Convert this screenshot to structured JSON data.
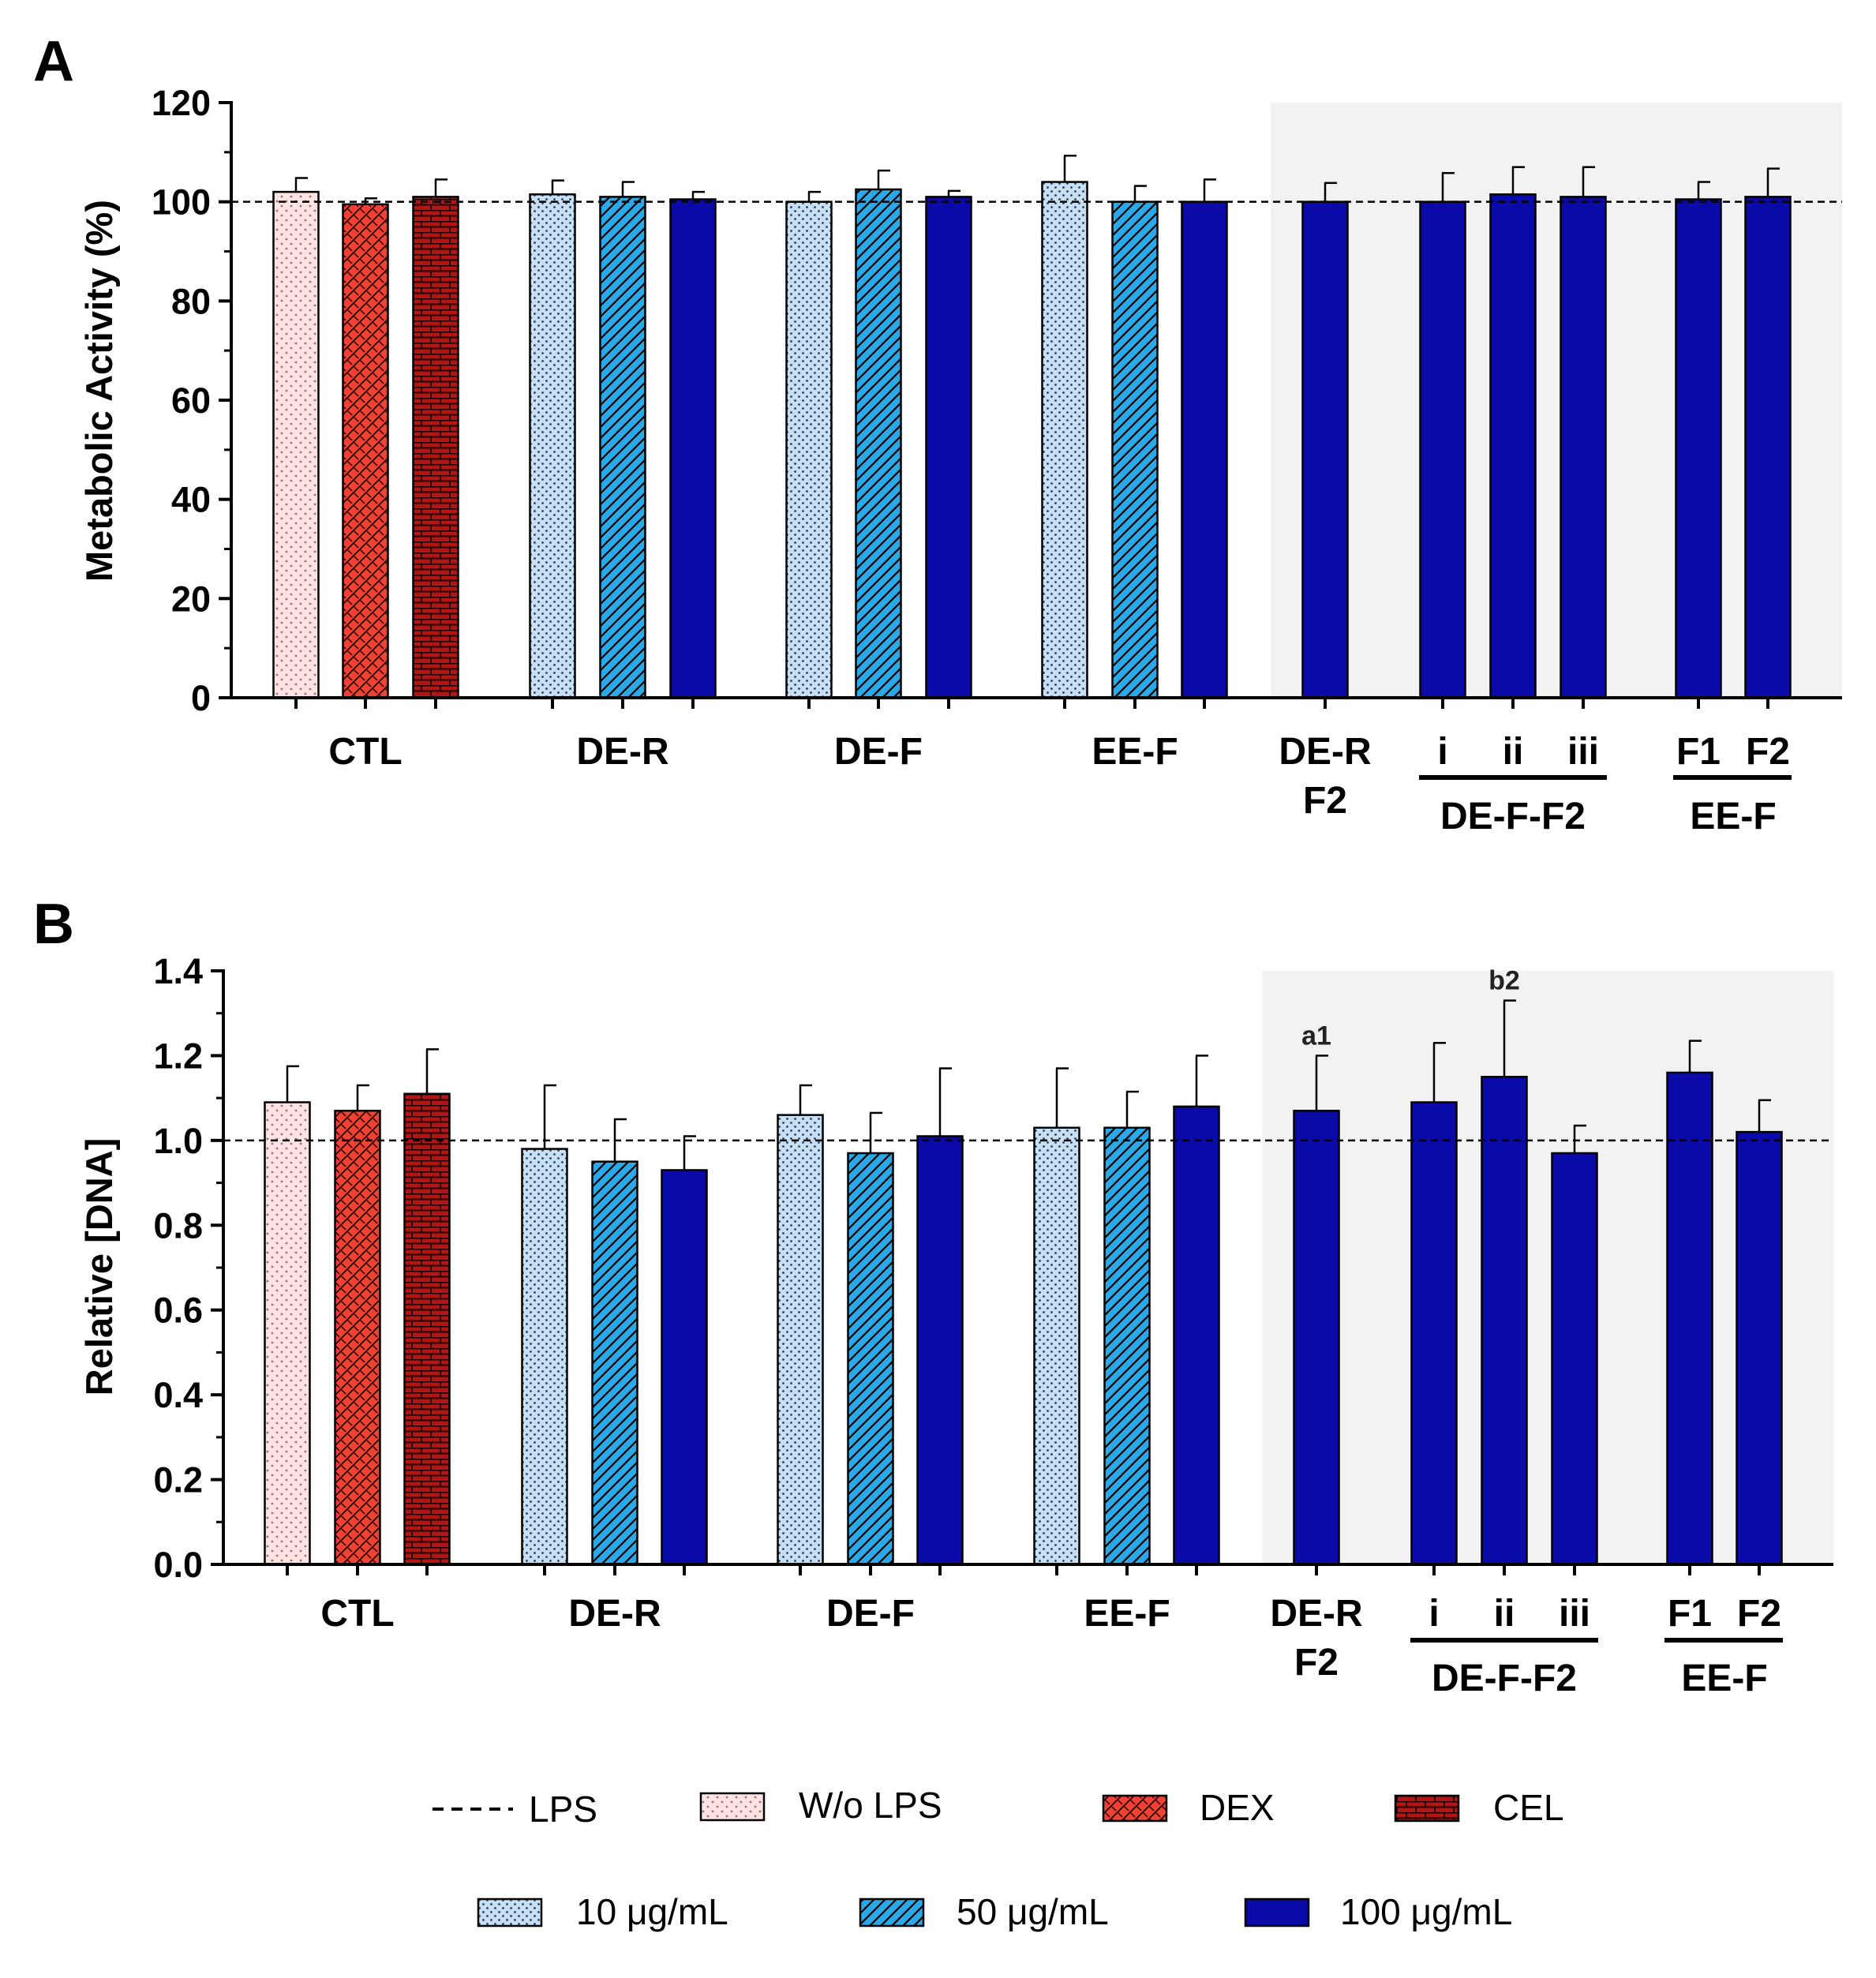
{
  "colors": {
    "wo_lps": "#fde3e3",
    "dex": "#f04336",
    "cel": "#b31515",
    "c10": "#c7dff3",
    "c50": "#29a8ea",
    "c100": "#0a0aa8",
    "shade": "#f2f2f2"
  },
  "chart_data": [
    {
      "type": "bar",
      "panel": "A",
      "ylabel": "Metabolic Activity (%)",
      "ylim": [
        0,
        120
      ],
      "yticks": [
        "0",
        "20",
        "40",
        "60",
        "80",
        "100",
        "120"
      ],
      "yticks_values": [
        0,
        20,
        40,
        60,
        80,
        100,
        120
      ],
      "reference_line": 100,
      "bars": [
        {
          "group": "CTL",
          "style": "wo_lps",
          "value": 102,
          "err": 2.8
        },
        {
          "group": "CTL",
          "style": "dex",
          "value": 99.5,
          "err": 1.2
        },
        {
          "group": "CTL",
          "style": "cel",
          "value": 101,
          "err": 3.5
        },
        {
          "group": "DE-R",
          "style": "c10",
          "value": 101.5,
          "err": 2.8
        },
        {
          "group": "DE-R",
          "style": "c50",
          "value": 101,
          "err": 3.0
        },
        {
          "group": "DE-R",
          "style": "c100",
          "value": 100.5,
          "err": 1.5
        },
        {
          "group": "DE-F",
          "style": "c10",
          "value": 100,
          "err": 2.0
        },
        {
          "group": "DE-F",
          "style": "c50",
          "value": 102.5,
          "err": 3.8
        },
        {
          "group": "DE-F",
          "style": "c100",
          "value": 101,
          "err": 1.2
        },
        {
          "group": "EE-F",
          "style": "c10",
          "value": 104,
          "err": 5.3
        },
        {
          "group": "EE-F",
          "style": "c50",
          "value": 100,
          "err": 3.2
        },
        {
          "group": "EE-F",
          "style": "c100",
          "value": 100,
          "err": 4.5
        },
        {
          "group": "DE-R F2",
          "style": "c100",
          "value": 100,
          "err": 3.8
        },
        {
          "group": "DE-F-F2 i",
          "style": "c100",
          "value": 100,
          "err": 5.8
        },
        {
          "group": "DE-F-F2 ii",
          "style": "c100",
          "value": 101.5,
          "err": 5.5
        },
        {
          "group": "DE-F-F2 iii",
          "style": "c100",
          "value": 101,
          "err": 6.0
        },
        {
          "group": "EE-F F1",
          "style": "c100",
          "value": 100.5,
          "err": 3.5
        },
        {
          "group": "EE-F F2",
          "style": "c100",
          "value": 101,
          "err": 5.7
        }
      ],
      "annotations": []
    },
    {
      "type": "bar",
      "panel": "B",
      "ylabel": "Relative [DNA]",
      "ylim": [
        0,
        1.4
      ],
      "yticks": [
        "0.0",
        "0.2",
        "0.4",
        "0.6",
        "0.8",
        "1.0",
        "1.2",
        "1.4"
      ],
      "yticks_values": [
        0,
        0.2,
        0.4,
        0.6,
        0.8,
        1.0,
        1.2,
        1.4
      ],
      "reference_line": 1.0,
      "bars": [
        {
          "group": "CTL",
          "style": "wo_lps",
          "value": 1.09,
          "err": 0.085
        },
        {
          "group": "CTL",
          "style": "dex",
          "value": 1.07,
          "err": 0.06
        },
        {
          "group": "CTL",
          "style": "cel",
          "value": 1.11,
          "err": 0.105
        },
        {
          "group": "DE-R",
          "style": "c10",
          "value": 0.98,
          "err": 0.15
        },
        {
          "group": "DE-R",
          "style": "c50",
          "value": 0.95,
          "err": 0.1
        },
        {
          "group": "DE-R",
          "style": "c100",
          "value": 0.93,
          "err": 0.08
        },
        {
          "group": "DE-F",
          "style": "c10",
          "value": 1.06,
          "err": 0.07
        },
        {
          "group": "DE-F",
          "style": "c50",
          "value": 0.97,
          "err": 0.095
        },
        {
          "group": "DE-F",
          "style": "c100",
          "value": 1.01,
          "err": 0.16
        },
        {
          "group": "EE-F",
          "style": "c10",
          "value": 1.03,
          "err": 0.14
        },
        {
          "group": "EE-F",
          "style": "c50",
          "value": 1.03,
          "err": 0.085
        },
        {
          "group": "EE-F",
          "style": "c100",
          "value": 1.08,
          "err": 0.12
        },
        {
          "group": "DE-R F2",
          "style": "c100",
          "value": 1.07,
          "err": 0.13
        },
        {
          "group": "DE-F-F2 i",
          "style": "c100",
          "value": 1.09,
          "err": 0.14
        },
        {
          "group": "DE-F-F2 ii",
          "style": "c100",
          "value": 1.15,
          "err": 0.18
        },
        {
          "group": "DE-F-F2 iii",
          "style": "c100",
          "value": 0.97,
          "err": 0.065
        },
        {
          "group": "EE-F F1",
          "style": "c100",
          "value": 1.16,
          "err": 0.075
        },
        {
          "group": "EE-F F2",
          "style": "c100",
          "value": 1.02,
          "err": 0.075
        }
      ],
      "annotations": [
        {
          "bar": 12,
          "text": "a1"
        },
        {
          "bar": 14,
          "text": "b2"
        }
      ]
    }
  ],
  "x_labels": {
    "ctl": "CTL",
    "der": "DE-R",
    "def": "DE-F",
    "eef": "EE-F",
    "derf2_line1": "DE-R",
    "derf2_line2": "F2",
    "i": "i",
    "ii": "ii",
    "iii": "iii",
    "defff2": "DE-F-F2",
    "f1": "F1",
    "f2": "F2",
    "eef2": "EE-F"
  },
  "legend": [
    {
      "key": "lps",
      "label": "LPS"
    },
    {
      "key": "wo_lps",
      "label": "W/o LPS"
    },
    {
      "key": "dex",
      "label": "DEX"
    },
    {
      "key": "cel",
      "label": "CEL"
    },
    {
      "key": "c10",
      "label": "10 μg/mL"
    },
    {
      "key": "c50",
      "label": "50 μg/mL"
    },
    {
      "key": "c100",
      "label": "100 μg/mL"
    }
  ]
}
